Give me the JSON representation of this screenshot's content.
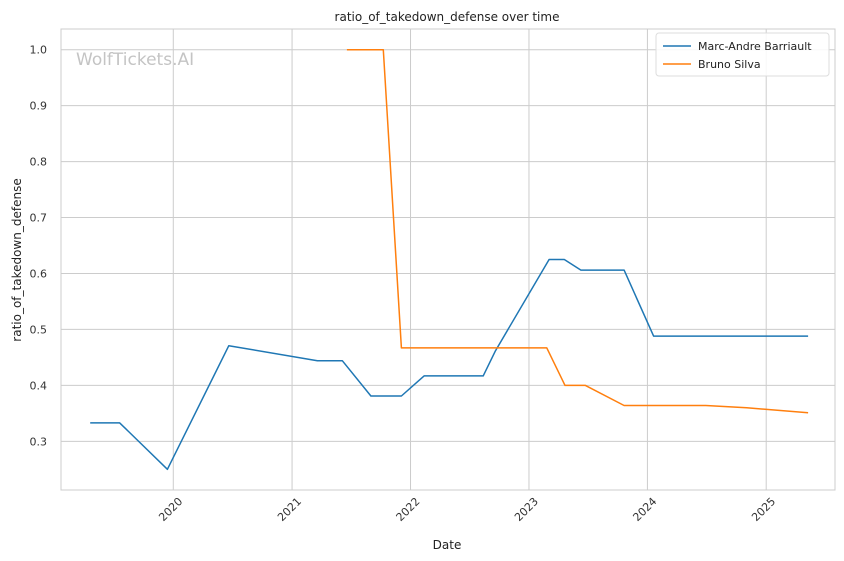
{
  "chart_data": {
    "type": "line",
    "title": "ratio_of_takedown_defense over time",
    "xlabel": "Date",
    "ylabel": "ratio_of_takedown_defense",
    "watermark": "WolfTickets.AI",
    "x_ticks": [
      "2020",
      "2021",
      "2022",
      "2023",
      "2024",
      "2025"
    ],
    "y_ticks": [
      "0.3",
      "0.4",
      "0.5",
      "0.6",
      "0.7",
      "0.8",
      "0.9",
      "1.0"
    ],
    "xlim": [
      "2019-01-20",
      "2025-08-01"
    ],
    "ylim": [
      0.213,
      1.037
    ],
    "grid": true,
    "legend_position": "top-right",
    "series": [
      {
        "name": "Marc-Andre Barriault",
        "color": "#1f77b4",
        "points": [
          [
            "2019-04-20",
            0.333
          ],
          [
            "2019-07-20",
            0.333
          ],
          [
            "2019-12-14",
            0.25
          ],
          [
            "2020-06-20",
            0.471
          ],
          [
            "2021-03-20",
            0.444
          ],
          [
            "2021-06-05",
            0.444
          ],
          [
            "2021-09-01",
            0.381
          ],
          [
            "2021-12-04",
            0.381
          ],
          [
            "2022-02-12",
            0.417
          ],
          [
            "2022-08-13",
            0.417
          ],
          [
            "2022-09-20",
            0.462
          ],
          [
            "2023-03-04",
            0.625
          ],
          [
            "2023-04-20",
            0.625
          ],
          [
            "2023-06-10",
            0.606
          ],
          [
            "2023-10-21",
            0.606
          ],
          [
            "2024-01-20",
            0.488
          ],
          [
            "2025-05-10",
            0.488
          ]
        ]
      },
      {
        "name": "Bruno Silva",
        "color": "#ff7f0e",
        "points": [
          [
            "2021-06-19",
            1.0
          ],
          [
            "2021-10-09",
            1.0
          ],
          [
            "2021-12-04",
            0.467
          ],
          [
            "2023-02-25",
            0.467
          ],
          [
            "2023-04-22",
            0.4
          ],
          [
            "2023-06-24",
            0.4
          ],
          [
            "2023-10-21",
            0.364
          ],
          [
            "2024-06-29",
            0.364
          ],
          [
            "2024-11-02",
            0.36
          ],
          [
            "2025-05-10",
            0.351
          ]
        ]
      }
    ]
  }
}
